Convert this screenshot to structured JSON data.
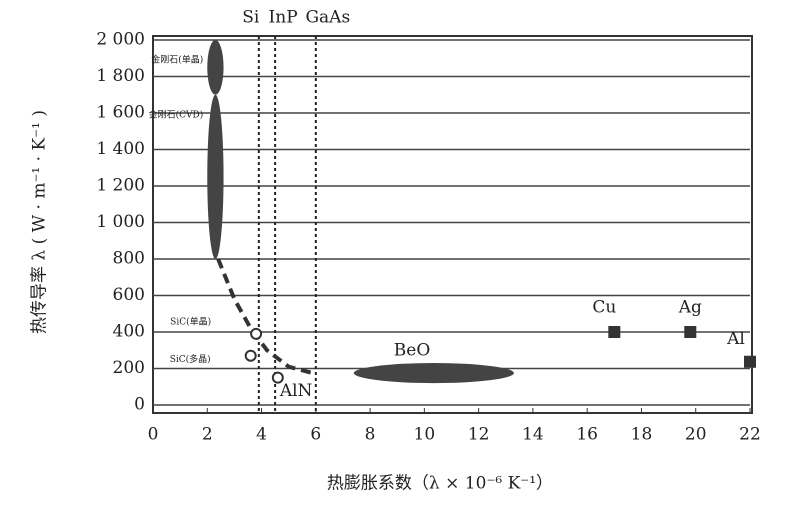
{
  "chart_data": {
    "type": "scatter",
    "x_label": "热膨胀系数（λ × 10⁻⁶ K⁻¹）",
    "y_label": "热传导率 λ ( W · m⁻¹ · K⁻¹ )",
    "xlim": [
      0,
      22
    ],
    "ylim": [
      0,
      2000
    ],
    "xticks": [
      0,
      2,
      4,
      6,
      8,
      10,
      12,
      14,
      16,
      18,
      20,
      22
    ],
    "yticks": [
      0,
      200,
      400,
      600,
      800,
      {
        "value": 1000,
        "label": "1 000"
      },
      {
        "value": 1200,
        "label": "1 200"
      },
      {
        "value": 1400,
        "label": "1 400"
      },
      {
        "value": 1600,
        "label": "1 600"
      },
      {
        "value": 1800,
        "label": "1 800"
      },
      {
        "value": 2000,
        "label": "2 000"
      }
    ],
    "grid": true,
    "color": "#333333",
    "vlines": [
      {
        "label": "Si",
        "x": 3.9
      },
      {
        "label": "InP",
        "x": 4.5
      },
      {
        "label": "GaAs",
        "x": 6
      }
    ],
    "points": [
      {
        "label": "Cu",
        "x": 17,
        "y": 400
      },
      {
        "label": "Ag",
        "x": 19.8,
        "y": 400
      },
      {
        "label": "Al",
        "x": 22,
        "y": 237
      },
      {
        "label": "SiC(单晶)",
        "x": 3.8,
        "y": 390
      },
      {
        "label": "SiC(多晶)",
        "x": 3.6,
        "y": 270
      },
      {
        "label": "AlN",
        "x": 4.6,
        "y": 150
      }
    ],
    "regions": [
      {
        "label": "金刚石(单晶)",
        "x": [
          2.0,
          2.6
        ],
        "y": [
          1700,
          2000
        ]
      },
      {
        "label": "金刚石(CVD)",
        "x": [
          2.0,
          2.6
        ],
        "y": [
          800,
          1700
        ]
      },
      {
        "label": "BeO",
        "x": [
          7.4,
          13.3
        ],
        "y": [
          120,
          230
        ]
      }
    ],
    "trend": {
      "x": [
        2.4,
        3,
        3.6,
        4.2,
        5,
        6
      ],
      "y": [
        800,
        580,
        420,
        300,
        210,
        170
      ]
    }
  }
}
